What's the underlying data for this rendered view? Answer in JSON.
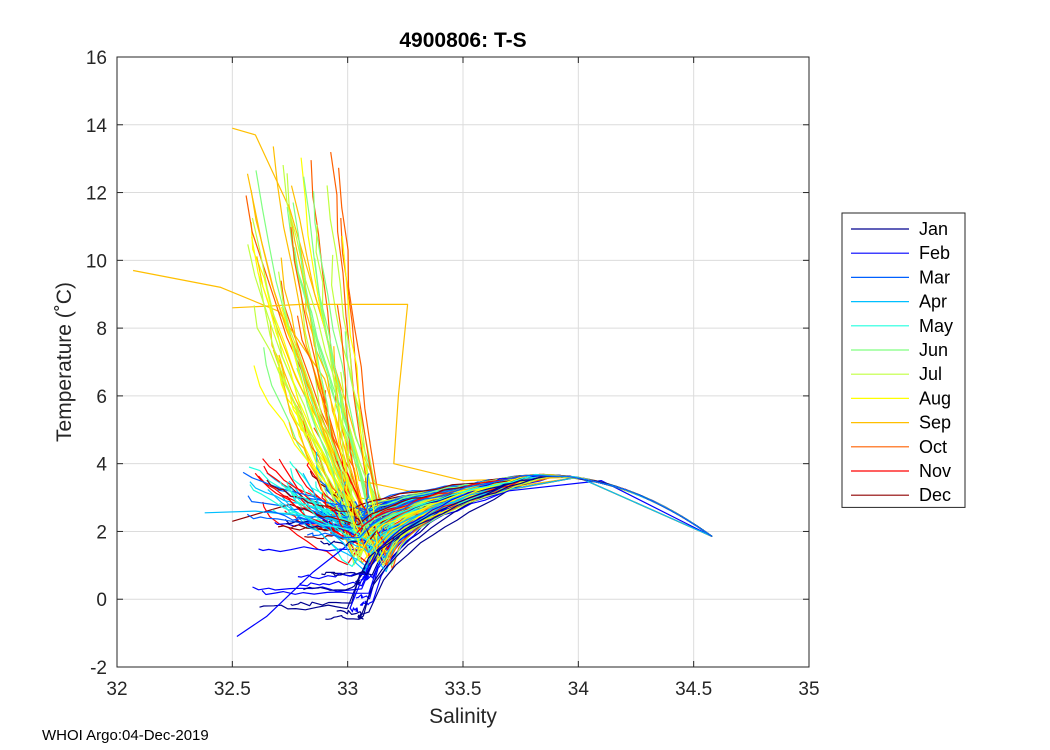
{
  "chart_data": {
    "type": "line",
    "title": "4900806:  T-S",
    "xlabel": "Salinity",
    "ylabel": "Temperature (˚C)",
    "xlim": [
      32,
      35
    ],
    "ylim": [
      -2,
      16
    ],
    "xticks": [
      32,
      32.5,
      33,
      33.5,
      34,
      34.5,
      35
    ],
    "yticks": [
      -2,
      0,
      2,
      4,
      6,
      8,
      10,
      12,
      14,
      16
    ],
    "xtick_labels": [
      "32",
      "32.5",
      "33",
      "33.5",
      "34",
      "34.5",
      "35"
    ],
    "ytick_labels": [
      "-2",
      "0",
      "2",
      "4",
      "6",
      "8",
      "10",
      "12",
      "14",
      "16"
    ],
    "grid": true,
    "legend_position": "right-outside",
    "series": [
      {
        "name": "Jan",
        "color": "#00008f"
      },
      {
        "name": "Feb",
        "color": "#0000ff"
      },
      {
        "name": "Mar",
        "color": "#0060ff"
      },
      {
        "name": "Apr",
        "color": "#00bfff"
      },
      {
        "name": "May",
        "color": "#20ffdf"
      },
      {
        "name": "Jun",
        "color": "#80ff80"
      },
      {
        "name": "Jul",
        "color": "#c0ff40"
      },
      {
        "name": "Aug",
        "color": "#ffff00"
      },
      {
        "name": "Sep",
        "color": "#ffbf00"
      },
      {
        "name": "Oct",
        "color": "#ff6000"
      },
      {
        "name": "Nov",
        "color": "#ff0000"
      },
      {
        "name": "Dec",
        "color": "#8f0000"
      }
    ]
  },
  "footer": {
    "text": "WHOI Argo:04-Dec-2019"
  }
}
